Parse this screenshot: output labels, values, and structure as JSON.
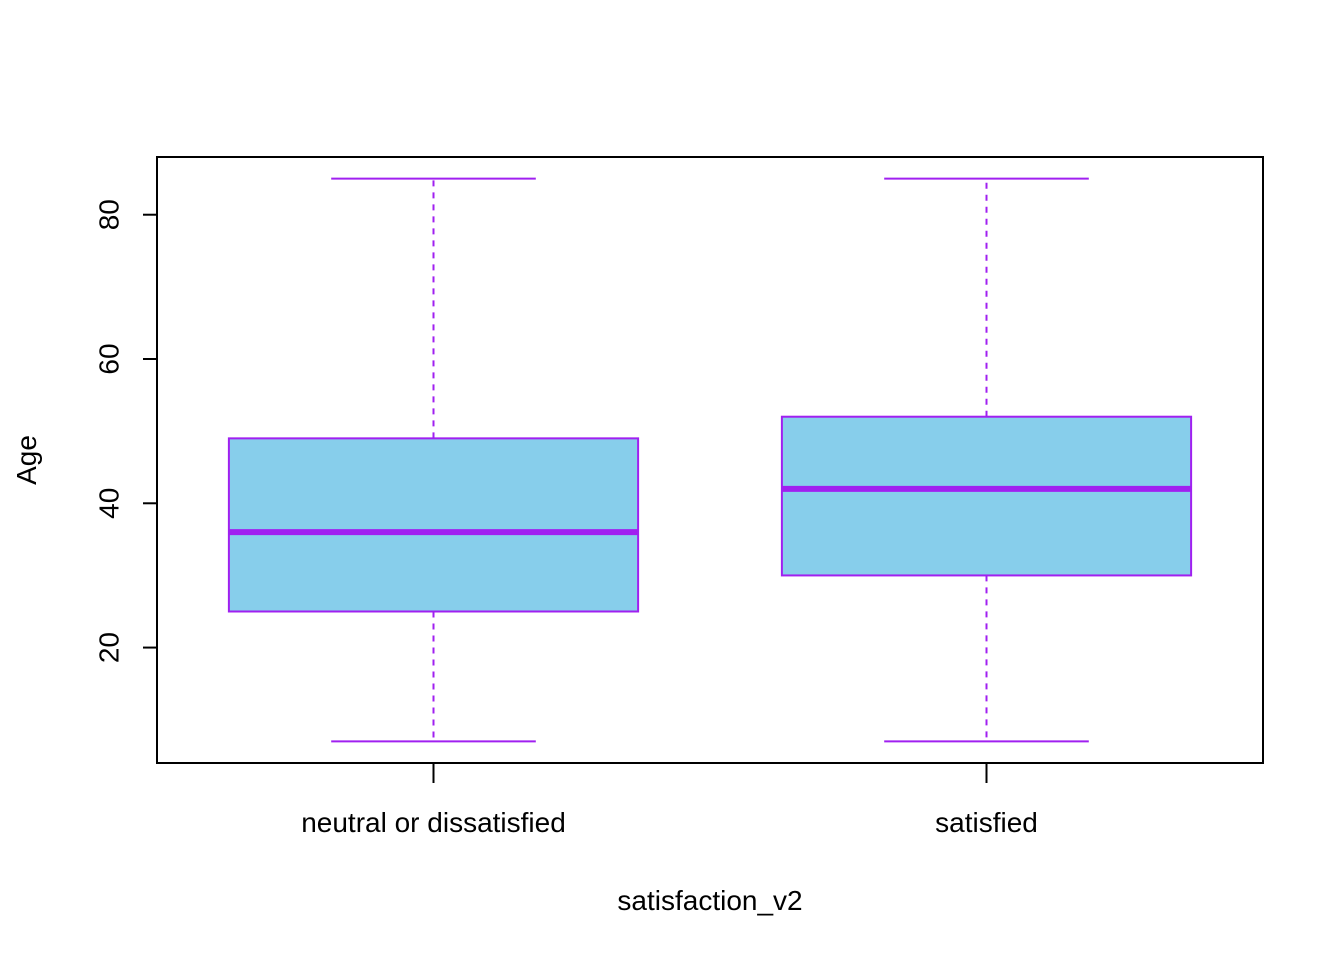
{
  "chart_data": {
    "type": "boxplot",
    "title": "",
    "xlabel": "satisfaction_v2",
    "ylabel": "Age",
    "ylim": [
      4,
      88
    ],
    "yticks": [
      20,
      40,
      60,
      80
    ],
    "categories": [
      "neutral or dissatisfied",
      "satisfied"
    ],
    "boxes": [
      {
        "category": "neutral or dissatisfied",
        "min": 7,
        "q1": 25,
        "median": 36,
        "q3": 49,
        "max": 85
      },
      {
        "category": "satisfied",
        "min": 7,
        "q1": 30,
        "median": 42,
        "q3": 52,
        "max": 85
      }
    ],
    "colors": {
      "box_fill": "#87ceeb",
      "box_border": "#a020f0",
      "median": "#a020f0",
      "whisker": "#a020f0",
      "axis": "#000000"
    },
    "whisker_style": "dashed",
    "grid": false,
    "legend": "none"
  }
}
